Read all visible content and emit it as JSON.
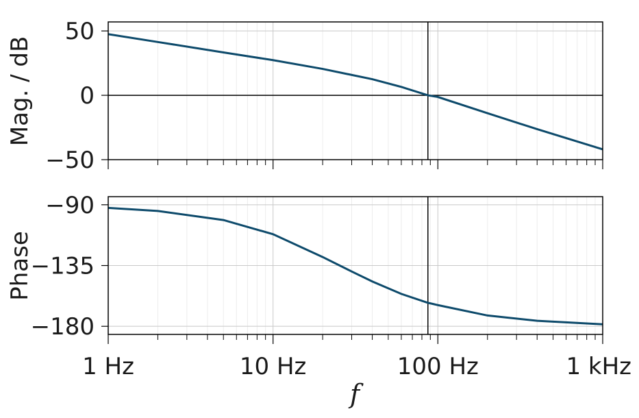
{
  "chart_data": [
    {
      "type": "line",
      "ylabel": "Mag. / dB",
      "xscale": "log",
      "xlim": [
        1,
        1000
      ],
      "ylim": [
        -50,
        57
      ],
      "yticks": [
        50,
        0,
        -50
      ],
      "ytick_labels": [
        "50",
        "0",
        "−50"
      ],
      "grid": true,
      "hline": 0,
      "vline": 87,
      "series": [
        {
          "x": [
            1,
            2,
            5,
            10,
            20,
            40,
            60,
            87,
            100,
            200,
            400,
            1000
          ],
          "values": [
            47.5,
            41.4,
            33.3,
            27.3,
            20.5,
            12.5,
            6.5,
            0,
            -1.3,
            -13.9,
            -26.3,
            -42.0
          ]
        }
      ]
    },
    {
      "type": "line",
      "ylabel": "Phase",
      "xscale": "log",
      "xlim": [
        1,
        1000
      ],
      "ylim": [
        -186,
        -84
      ],
      "yticks": [
        -90,
        -135,
        -180
      ],
      "ytick_labels": [
        "−90",
        "−135",
        "−180"
      ],
      "xticks": [
        1,
        10,
        100,
        1000
      ],
      "xtick_labels": [
        "1 Hz",
        "10 Hz",
        "100 Hz",
        "1 kHz"
      ],
      "xlabel": "f",
      "grid": true,
      "vline": 87,
      "series": [
        {
          "x": [
            1,
            2,
            5,
            10,
            20,
            30,
            40,
            60,
            87,
            100,
            200,
            400,
            1000
          ],
          "values": [
            -92.3,
            -94.6,
            -101.3,
            -111.8,
            -128.7,
            -139.4,
            -146.8,
            -156.0,
            -162.6,
            -164.3,
            -172.0,
            -175.9,
            -178.5
          ]
        }
      ]
    }
  ],
  "colors": {
    "series": "#0d4a6b",
    "grid": "#c8c8c8",
    "frame": "#000000"
  }
}
